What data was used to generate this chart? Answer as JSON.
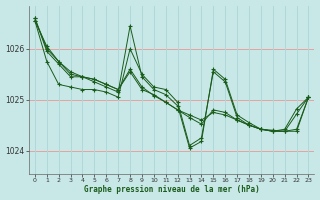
{
  "title": "Graphe pression niveau de la mer (hPa)",
  "background_color": "#c8e8e8",
  "grid_h_color": "#e8a0a0",
  "grid_v_color": "#b0d8d8",
  "line_color": "#1a5c1a",
  "xlim": [
    -0.5,
    23.5
  ],
  "ylim": [
    1023.55,
    1026.85
  ],
  "yticks": [
    1024,
    1025,
    1026
  ],
  "xticks": [
    0,
    1,
    2,
    3,
    4,
    5,
    6,
    7,
    8,
    9,
    10,
    11,
    12,
    13,
    14,
    15,
    16,
    17,
    18,
    19,
    20,
    21,
    22,
    23
  ],
  "series": [
    [
      1026.55,
      1026.05,
      1025.75,
      1025.55,
      1025.45,
      1025.4,
      1025.3,
      1025.2,
      1025.55,
      1025.2,
      1025.1,
      1024.95,
      1024.8,
      1024.7,
      1024.6,
      1024.75,
      1024.7,
      1024.6,
      1024.5,
      1024.42,
      1024.4,
      1024.38,
      1024.38,
      1025.05
    ],
    [
      1026.55,
      1025.75,
      1025.3,
      1025.25,
      1025.2,
      1025.2,
      1025.15,
      1025.05,
      1026.0,
      1025.5,
      1025.25,
      1025.2,
      1024.95,
      1024.1,
      1024.25,
      1025.55,
      1025.35,
      1024.65,
      1024.5,
      1024.42,
      1024.38,
      1024.38,
      1024.72,
      1025.05
    ],
    [
      1026.6,
      1025.95,
      1025.7,
      1025.45,
      1025.45,
      1025.35,
      1025.25,
      1025.15,
      1026.45,
      1025.45,
      1025.2,
      1025.1,
      1024.88,
      1024.05,
      1024.18,
      1025.6,
      1025.4,
      1024.7,
      1024.55,
      1024.42,
      1024.38,
      1024.42,
      1024.82,
      1025.05
    ],
    [
      1026.6,
      1026.0,
      1025.75,
      1025.5,
      1025.45,
      1025.4,
      1025.3,
      1025.2,
      1025.6,
      1025.25,
      1025.08,
      1024.95,
      1024.8,
      1024.65,
      1024.52,
      1024.8,
      1024.75,
      1024.6,
      1024.5,
      1024.42,
      1024.38,
      1024.38,
      1024.42,
      1025.05
    ]
  ]
}
